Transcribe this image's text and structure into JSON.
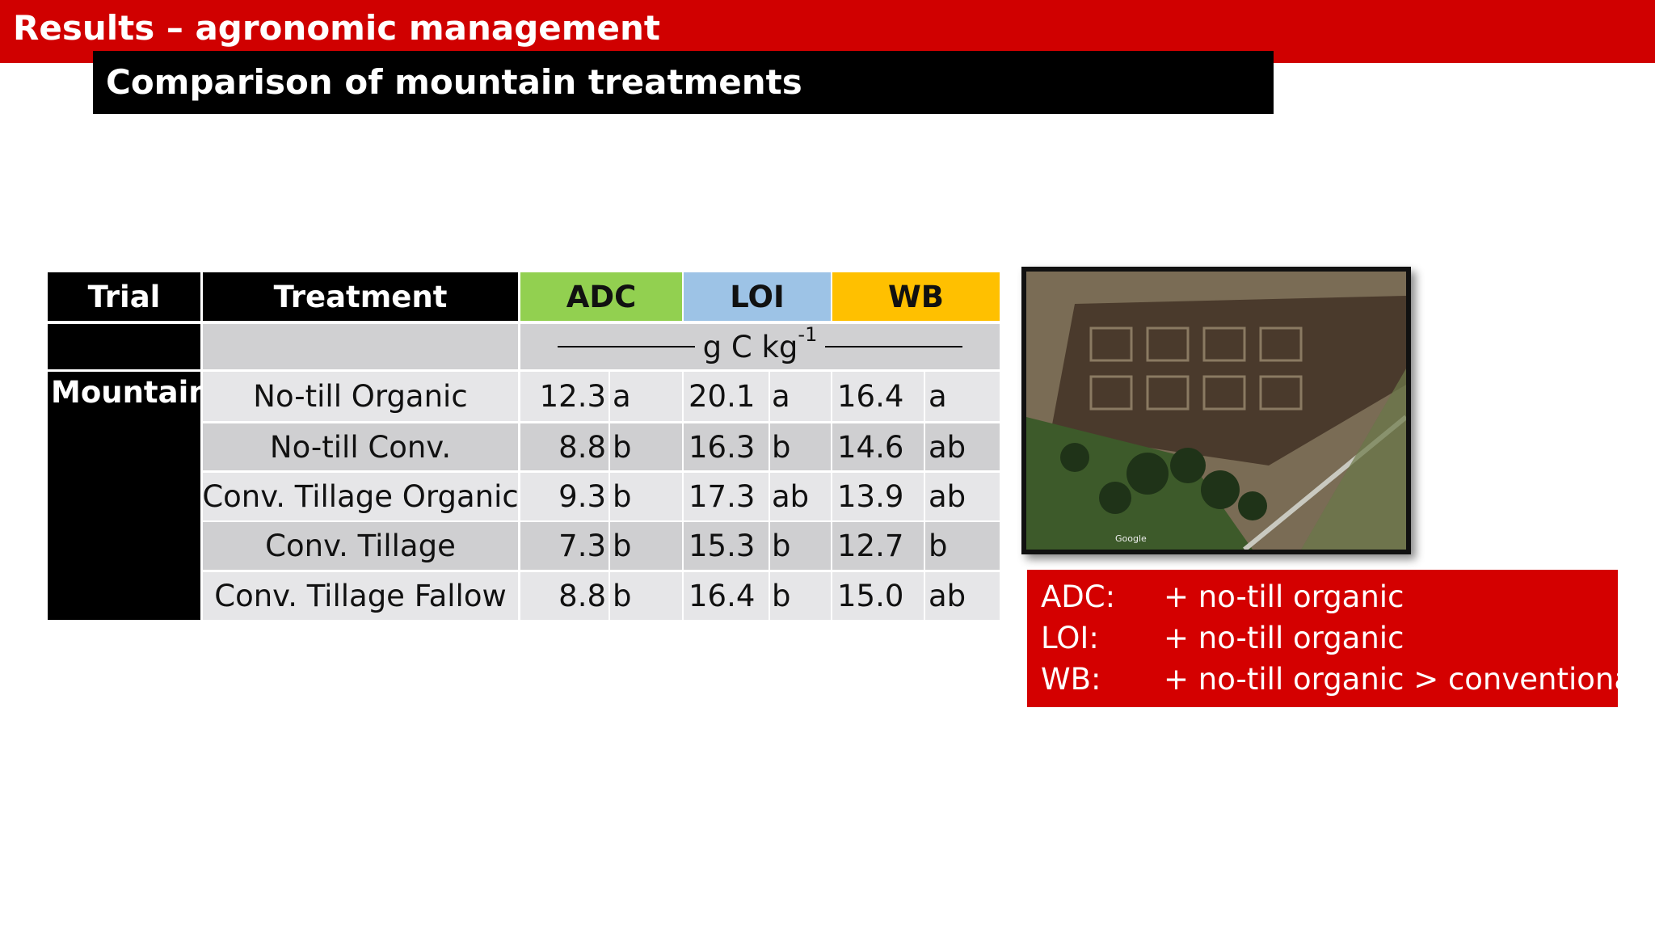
{
  "header": {
    "title": "Results – agronomic management",
    "subtitle": "Comparison of mountain treatments"
  },
  "table": {
    "columns": [
      "Trial",
      "Treatment",
      "ADC",
      "LOI",
      "WB"
    ],
    "unit": {
      "base": "g C kg",
      "sup": "-1"
    },
    "trial": "Mountain",
    "rows": [
      [
        "No-till Organic",
        "12.3",
        "a",
        "20.1",
        "a",
        "16.4",
        "a"
      ],
      [
        "No-till Conv.",
        "8.8",
        "b",
        "16.3",
        "b",
        "14.6",
        "ab"
      ],
      [
        "Conv. Tillage Organic",
        "9.3",
        "b",
        "17.3",
        "ab",
        "13.9",
        "ab"
      ],
      [
        "Conv. Tillage",
        "7.3",
        "b",
        "15.3",
        "b",
        "12.7",
        "b"
      ],
      [
        "Conv. Tillage Fallow",
        "8.8",
        "b",
        "16.4",
        "b",
        "15.0",
        "ab"
      ]
    ]
  },
  "photo": {
    "watermark": "Google"
  },
  "callout": {
    "lines": [
      [
        "ADC:",
        "+ no-till organic"
      ],
      [
        "LOI:",
        "+ no-till organic"
      ],
      [
        "WB:",
        "+ no-till organic > conventional"
      ]
    ]
  }
}
